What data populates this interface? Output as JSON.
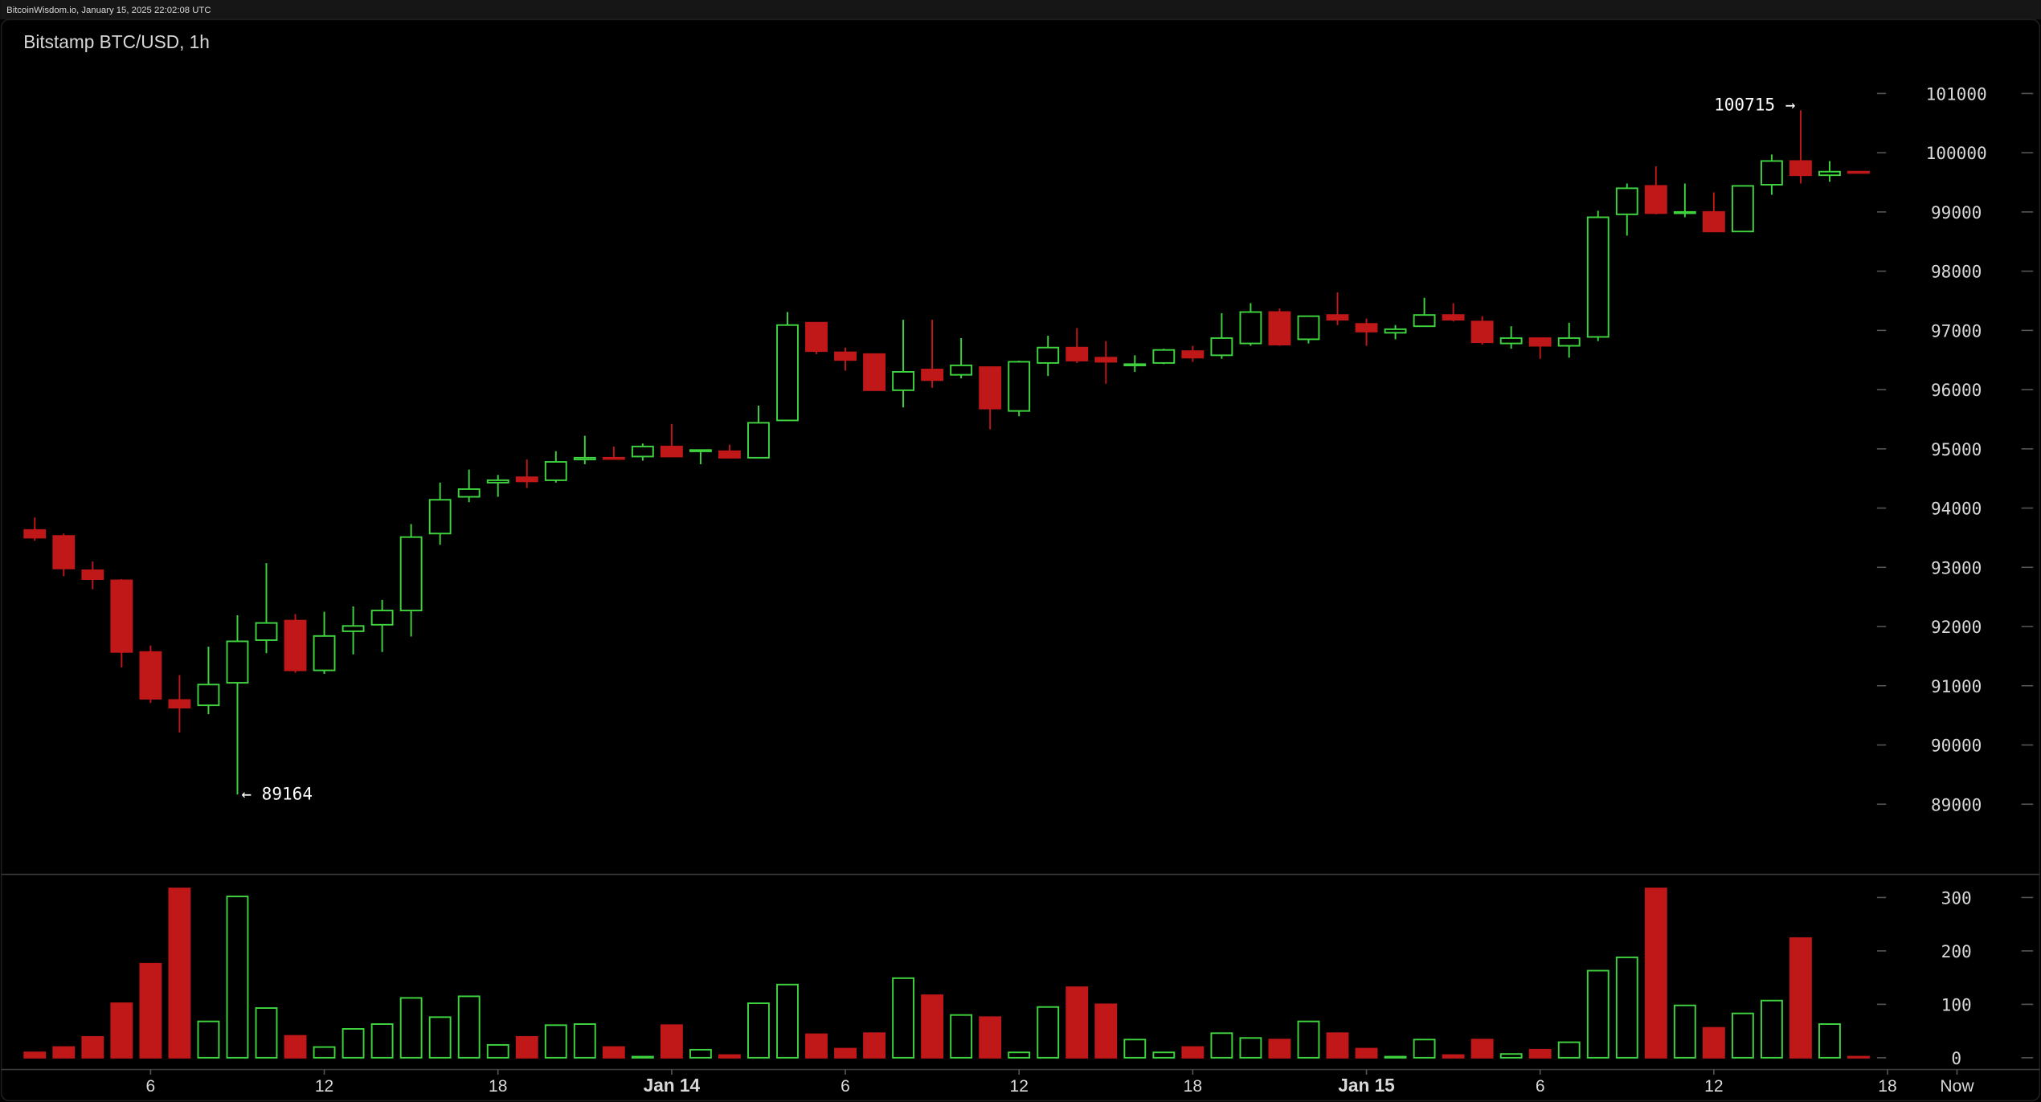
{
  "chart_data": {
    "type": "candlestick",
    "source": "BitcoinWisdom.io, January 15, 2025 22:02:08 UTC",
    "title": "Bitstamp BTC/USD, 1h",
    "up_color": "#3fd43f",
    "down_color": "#c01818",
    "open": [
      93630,
      93530,
      92950,
      92780,
      91570,
      90760,
      90670,
      91050,
      91770,
      92100,
      91260,
      91920,
      92030,
      92270,
      93570,
      94190,
      94430,
      94520,
      94470,
      94820,
      94850,
      94870,
      95040,
      94960,
      94960,
      94850,
      95480,
      97130,
      96630,
      96600,
      95990,
      96340,
      96250,
      96380,
      95640,
      96450,
      96710,
      96540,
      96410,
      96450,
      96650,
      96580,
      96780,
      97310,
      96850,
      97260,
      97110,
      96960,
      97070,
      97260,
      97150,
      96780,
      96870,
      96740,
      96890,
      98960,
      99440,
      98980,
      99000,
      98670,
      99460,
      99860,
      99620,
      99680
    ],
    "high": [
      93840,
      93570,
      93100,
      92800,
      91680,
      91180,
      91660,
      92190,
      93070,
      92210,
      92250,
      92340,
      92450,
      93730,
      94430,
      94650,
      94560,
      94820,
      94960,
      95220,
      95040,
      95090,
      95420,
      94980,
      95070,
      95730,
      97310,
      97130,
      96710,
      96600,
      97180,
      97180,
      96870,
      96380,
      96490,
      96910,
      97040,
      96820,
      96580,
      96690,
      96740,
      97290,
      97460,
      97370,
      97240,
      97640,
      97200,
      97090,
      97550,
      97460,
      97240,
      97070,
      96870,
      97130,
      99020,
      99480,
      99770,
      99480,
      99330,
      99440,
      99970,
      100715,
      99860,
      99690
    ],
    "low": [
      93450,
      92850,
      92630,
      91310,
      90710,
      90210,
      90520,
      89164,
      91550,
      91220,
      91200,
      91530,
      91570,
      91830,
      93380,
      94100,
      94190,
      94340,
      94430,
      94740,
      94820,
      94800,
      94870,
      94740,
      94840,
      94840,
      95480,
      96600,
      96320,
      95990,
      95700,
      96030,
      96190,
      95330,
      95550,
      96230,
      96450,
      96100,
      96300,
      96430,
      96470,
      96520,
      96740,
      96740,
      96780,
      97090,
      96740,
      96850,
      97070,
      97150,
      96760,
      96690,
      96520,
      96540,
      96820,
      98600,
      98960,
      98910,
      98670,
      98670,
      99290,
      99480,
      99510,
      99650
    ],
    "close": [
      93500,
      92980,
      92800,
      91570,
      90780,
      90630,
      91020,
      91750,
      92060,
      91260,
      91840,
      92010,
      92270,
      93510,
      94140,
      94320,
      94470,
      94450,
      94780,
      94850,
      94830,
      95040,
      94870,
      94980,
      94850,
      95440,
      97090,
      96650,
      96500,
      95990,
      96300,
      96160,
      96410,
      95680,
      96470,
      96710,
      96490,
      96470,
      96430,
      96670,
      96540,
      96870,
      97310,
      96760,
      97240,
      97180,
      96980,
      97020,
      97260,
      97180,
      96800,
      96870,
      96740,
      96870,
      98910,
      99400,
      98980,
      99000,
      98670,
      99440,
      99860,
      99620,
      99680,
      99660
    ],
    "volume": [
      10,
      20,
      39,
      102,
      176,
      317,
      68,
      302,
      93,
      41,
      20,
      54,
      63,
      112,
      76,
      115,
      24,
      39,
      61,
      63,
      20,
      2,
      61,
      15,
      5,
      102,
      137,
      44,
      17,
      46,
      149,
      117,
      80,
      76,
      10,
      95,
      132,
      100,
      34,
      10,
      20,
      46,
      37,
      34,
      68,
      46,
      17,
      2,
      34,
      5,
      34,
      7,
      15,
      29,
      163,
      188,
      317,
      98,
      56,
      83,
      107,
      224,
      63,
      2
    ],
    "ylim": [
      87860,
      101700
    ],
    "yticks": [
      89000,
      90000,
      91000,
      92000,
      93000,
      94000,
      95000,
      96000,
      97000,
      98000,
      99000,
      100000,
      101000
    ],
    "volume_ylim": [
      -22,
      341
    ],
    "volume_yticks": [
      0,
      100,
      200,
      300
    ],
    "xlim": [
      -1.2,
      69.3
    ],
    "xticks": [
      {
        "value": 4,
        "label": "6"
      },
      {
        "value": 10,
        "label": "12"
      },
      {
        "value": 16,
        "label": "18"
      },
      {
        "value": 22,
        "label": "Jan 14"
      },
      {
        "value": 28,
        "label": "6"
      },
      {
        "value": 34,
        "label": "12"
      },
      {
        "value": 40,
        "label": "18"
      },
      {
        "value": 46,
        "label": "Jan 15"
      },
      {
        "value": 52,
        "label": "6"
      },
      {
        "value": 58,
        "label": "12"
      },
      {
        "value": 64,
        "label": "18"
      },
      {
        "value": 66.4,
        "label": "Now"
      }
    ],
    "annotations": [
      {
        "label": "100715 →",
        "value": 100715
      },
      {
        "label": "← 89164",
        "value": 89164
      }
    ]
  }
}
